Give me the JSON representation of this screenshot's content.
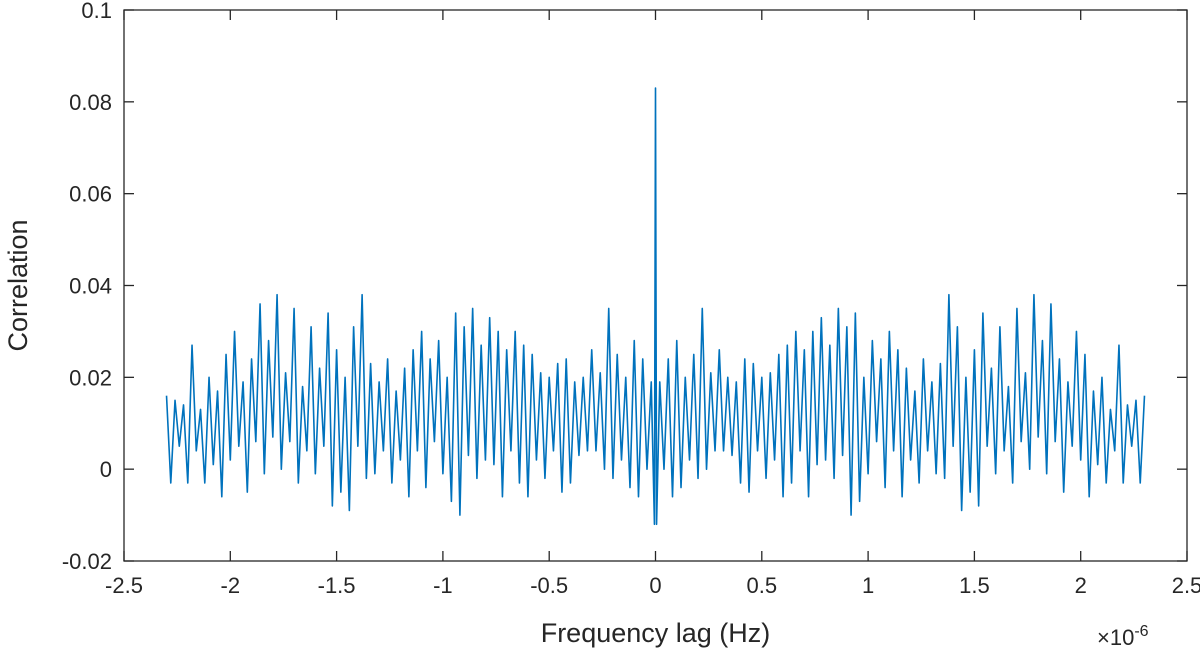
{
  "chart_data": {
    "type": "line",
    "title": "",
    "xlabel": "Frequency lag (Hz)",
    "ylabel": "Correlation",
    "x_multiplier": {
      "base": "×10",
      "exponent": "-6"
    },
    "xlim": [
      -2.5,
      2.5
    ],
    "ylim": [
      -0.02,
      0.1
    ],
    "x_ticks": [
      -2.5,
      -2,
      -1.5,
      -1,
      -0.5,
      0,
      0.5,
      1,
      1.5,
      2,
      2.5
    ],
    "x_tick_labels": [
      "-2.5",
      "-2",
      "-1.5",
      "-1",
      "-0.5",
      "0",
      "0.5",
      "1",
      "1.5",
      "2",
      "2.5"
    ],
    "y_ticks": [
      -0.02,
      0,
      0.02,
      0.04,
      0.06,
      0.08,
      0.1
    ],
    "y_tick_labels": [
      "-0.02",
      "0",
      "0.02",
      "0.04",
      "0.06",
      "0.08",
      "0.1"
    ],
    "grid": false,
    "legend": "none",
    "series": [
      {
        "color": "#0072BD",
        "x": [
          -2.3,
          -2.28,
          -2.26,
          -2.24,
          -2.22,
          -2.2,
          -2.18,
          -2.16,
          -2.14,
          -2.12,
          -2.1,
          -2.08,
          -2.06,
          -2.04,
          -2.02,
          -2.0,
          -1.98,
          -1.96,
          -1.94,
          -1.92,
          -1.9,
          -1.88,
          -1.86,
          -1.84,
          -1.82,
          -1.8,
          -1.78,
          -1.76,
          -1.74,
          -1.72,
          -1.7,
          -1.68,
          -1.66,
          -1.64,
          -1.62,
          -1.6,
          -1.58,
          -1.56,
          -1.54,
          -1.52,
          -1.5,
          -1.48,
          -1.46,
          -1.44,
          -1.42,
          -1.4,
          -1.38,
          -1.36,
          -1.34,
          -1.32,
          -1.3,
          -1.28,
          -1.26,
          -1.24,
          -1.22,
          -1.2,
          -1.18,
          -1.16,
          -1.14,
          -1.12,
          -1.1,
          -1.08,
          -1.06,
          -1.04,
          -1.02,
          -1.0,
          -0.98,
          -0.96,
          -0.94,
          -0.92,
          -0.9,
          -0.88,
          -0.86,
          -0.84,
          -0.82,
          -0.8,
          -0.78,
          -0.76,
          -0.74,
          -0.72,
          -0.7,
          -0.68,
          -0.66,
          -0.64,
          -0.62,
          -0.6,
          -0.58,
          -0.56,
          -0.54,
          -0.52,
          -0.5,
          -0.48,
          -0.46,
          -0.44,
          -0.42,
          -0.4,
          -0.38,
          -0.36,
          -0.34,
          -0.32,
          -0.3,
          -0.28,
          -0.26,
          -0.24,
          -0.22,
          -0.2,
          -0.18,
          -0.16,
          -0.14,
          -0.12,
          -0.1,
          -0.08,
          -0.06,
          -0.04,
          -0.02,
          -0.005,
          0.0,
          0.005,
          0.02,
          0.04,
          0.06,
          0.08,
          0.1,
          0.12,
          0.14,
          0.16,
          0.18,
          0.2,
          0.22,
          0.24,
          0.26,
          0.28,
          0.3,
          0.32,
          0.34,
          0.36,
          0.38,
          0.4,
          0.42,
          0.44,
          0.46,
          0.48,
          0.5,
          0.52,
          0.54,
          0.56,
          0.58,
          0.6,
          0.62,
          0.64,
          0.66,
          0.68,
          0.7,
          0.72,
          0.74,
          0.76,
          0.78,
          0.8,
          0.82,
          0.84,
          0.86,
          0.88,
          0.9,
          0.92,
          0.94,
          0.96,
          0.98,
          1.0,
          1.02,
          1.04,
          1.06,
          1.08,
          1.1,
          1.12,
          1.14,
          1.16,
          1.18,
          1.2,
          1.22,
          1.24,
          1.26,
          1.28,
          1.3,
          1.32,
          1.34,
          1.36,
          1.38,
          1.4,
          1.42,
          1.44,
          1.46,
          1.48,
          1.5,
          1.52,
          1.54,
          1.56,
          1.58,
          1.6,
          1.62,
          1.64,
          1.66,
          1.68,
          1.7,
          1.72,
          1.74,
          1.76,
          1.78,
          1.8,
          1.82,
          1.84,
          1.86,
          1.88,
          1.9,
          1.92,
          1.94,
          1.96,
          1.98,
          2.0,
          2.02,
          2.04,
          2.06,
          2.08,
          2.1,
          2.12,
          2.14,
          2.16,
          2.18,
          2.2,
          2.22,
          2.24,
          2.26,
          2.28,
          2.3
        ],
        "y": [
          0.016,
          -0.003,
          0.015,
          0.005,
          0.014,
          -0.003,
          0.027,
          0.004,
          0.013,
          -0.003,
          0.02,
          0.001,
          0.017,
          -0.006,
          0.025,
          0.002,
          0.03,
          0.005,
          0.019,
          -0.005,
          0.024,
          0.006,
          0.036,
          -0.001,
          0.028,
          0.007,
          0.038,
          0.0,
          0.021,
          0.006,
          0.035,
          -0.003,
          0.018,
          0.004,
          0.031,
          -0.001,
          0.022,
          0.005,
          0.034,
          -0.008,
          0.026,
          -0.005,
          0.02,
          -0.009,
          0.031,
          0.005,
          0.038,
          -0.002,
          0.023,
          -0.001,
          0.019,
          0.004,
          0.024,
          -0.003,
          0.017,
          0.002,
          0.022,
          -0.006,
          0.026,
          0.004,
          0.03,
          -0.004,
          0.024,
          0.006,
          0.028,
          -0.001,
          0.02,
          -0.007,
          0.034,
          -0.01,
          0.031,
          0.003,
          0.035,
          -0.002,
          0.027,
          0.002,
          0.033,
          0.001,
          0.03,
          -0.006,
          0.026,
          0.004,
          0.03,
          -0.003,
          0.027,
          -0.006,
          0.025,
          0.002,
          0.021,
          -0.002,
          0.02,
          0.004,
          0.023,
          -0.005,
          0.024,
          -0.003,
          0.019,
          0.003,
          0.02,
          0.004,
          0.026,
          0.004,
          0.021,
          0.0,
          0.035,
          -0.002,
          0.025,
          0.002,
          0.02,
          -0.004,
          0.028,
          -0.006,
          0.024,
          0.0,
          0.019,
          -0.012,
          0.083,
          -0.012,
          0.019,
          0.0,
          0.024,
          -0.006,
          0.028,
          -0.004,
          0.02,
          0.002,
          0.025,
          -0.002,
          0.035,
          0.0,
          0.021,
          0.004,
          0.026,
          0.004,
          0.02,
          0.003,
          0.019,
          -0.003,
          0.024,
          -0.005,
          0.023,
          0.004,
          0.02,
          -0.002,
          0.021,
          0.002,
          0.025,
          -0.006,
          0.027,
          -0.003,
          0.03,
          0.004,
          0.026,
          -0.006,
          0.03,
          0.001,
          0.033,
          0.002,
          0.027,
          -0.002,
          0.035,
          0.003,
          0.031,
          -0.01,
          0.034,
          -0.007,
          0.02,
          -0.001,
          0.028,
          0.006,
          0.024,
          -0.004,
          0.03,
          0.004,
          0.026,
          -0.006,
          0.022,
          0.002,
          0.017,
          -0.003,
          0.024,
          0.004,
          0.019,
          -0.001,
          0.023,
          -0.002,
          0.038,
          0.005,
          0.031,
          -0.009,
          0.02,
          -0.005,
          0.026,
          -0.008,
          0.034,
          0.005,
          0.022,
          -0.001,
          0.031,
          0.004,
          0.018,
          -0.003,
          0.035,
          0.006,
          0.021,
          0.0,
          0.038,
          0.007,
          0.028,
          -0.001,
          0.036,
          0.006,
          0.024,
          -0.005,
          0.019,
          0.005,
          0.03,
          0.002,
          0.025,
          -0.006,
          0.017,
          0.001,
          0.02,
          -0.003,
          0.013,
          0.004,
          0.027,
          -0.003,
          0.014,
          0.005,
          0.015,
          -0.003,
          0.016
        ]
      }
    ]
  }
}
